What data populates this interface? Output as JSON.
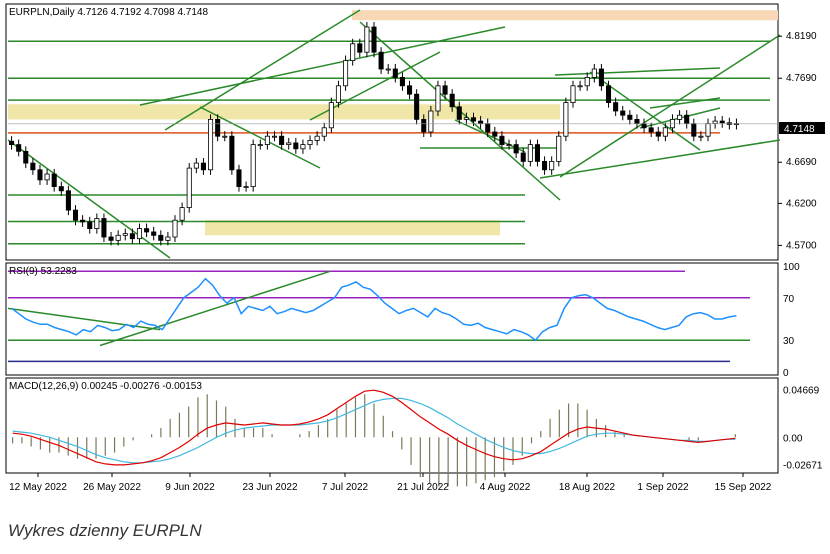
{
  "title": "EURPLN,Daily  4.7126 4.7192 4.7098 4.7148",
  "last_price_label": "4.7148",
  "caption": "Wykres dzienny EURPLN",
  "colors": {
    "bull": "#ffffff",
    "bear": "#000000",
    "rsi": "#1e90ff",
    "macd_line": "#e00000",
    "signal_line": "#40b8e0",
    "hist": "#7a7a5a",
    "trend": "#2a8a2a",
    "support": "#e0501a",
    "zone": "#f0e6a8",
    "zone_top": "#f7d7b5",
    "rsi_levels": "#9a20c0"
  },
  "chart_data": [
    {
      "type": "candlestick",
      "title": "EURPLN,Daily  4.7126 4.7192 4.7098 4.7148",
      "x_ticks": [
        "12 May 2022",
        "26 May 2022",
        "9 Jun 2022",
        "23 Jun 2022",
        "7 Jul 2022",
        "21 Jul 2022",
        "4 Aug 2022",
        "18 Aug 2022",
        "1 Sep 2022",
        "15 Sep 2022"
      ],
      "y_ticks": [
        4.819,
        4.769,
        4.7148,
        4.669,
        4.62,
        4.57
      ],
      "ylim": [
        4.555,
        4.855
      ],
      "ohlc_close_series": [
        4.69,
        4.682,
        4.668,
        4.66,
        4.648,
        4.655,
        4.64,
        4.635,
        4.612,
        4.6,
        4.598,
        4.59,
        4.602,
        4.58,
        4.576,
        4.582,
        4.584,
        4.578,
        4.59,
        4.586,
        4.582,
        4.576,
        4.58,
        4.6,
        4.615,
        4.662,
        4.668,
        4.66,
        4.72,
        4.7,
        4.7,
        4.66,
        4.64,
        4.64,
        4.69,
        4.69,
        4.7,
        4.7,
        4.69,
        4.692,
        4.685,
        4.69,
        4.695,
        4.7,
        4.71,
        4.74,
        4.76,
        4.79,
        4.81,
        4.8,
        4.83,
        4.8,
        4.78,
        4.78,
        4.77,
        4.76,
        4.75,
        4.72,
        4.705,
        4.73,
        4.76,
        4.75,
        4.735,
        4.72,
        4.722,
        4.718,
        4.715,
        4.705,
        4.7,
        4.69,
        4.69,
        4.68,
        4.67,
        4.69,
        4.67,
        4.66,
        4.67,
        4.7,
        4.74,
        4.76,
        4.76,
        4.77,
        4.78,
        4.76,
        4.74,
        4.73,
        4.725,
        4.72,
        4.715,
        4.71,
        4.705,
        4.7,
        4.71,
        4.72,
        4.725,
        4.715,
        4.7,
        4.7,
        4.715,
        4.718,
        4.716,
        4.714,
        4.715
      ],
      "support_line": 4.704,
      "zones": [
        [
          4.582,
          4.6
        ],
        [
          4.72,
          4.738
        ],
        [
          4.838,
          4.85
        ]
      ]
    },
    {
      "type": "line",
      "title": "RSI(9) 53.2283",
      "y_ticks": [
        100,
        70,
        30,
        0
      ],
      "ylim": [
        0,
        100
      ],
      "levels": [
        95,
        70,
        30,
        10
      ],
      "series": [
        {
          "name": "RSI(9)",
          "values": [
            60,
            55,
            50,
            47,
            45,
            45,
            42,
            40,
            38,
            35,
            40,
            38,
            44,
            42,
            39,
            40,
            45,
            42,
            48,
            45,
            44,
            40,
            50,
            60,
            70,
            75,
            80,
            88,
            82,
            72,
            65,
            70,
            55,
            62,
            60,
            58,
            62,
            55,
            57,
            60,
            58,
            56,
            58,
            62,
            66,
            70,
            80,
            82,
            85,
            80,
            78,
            72,
            65,
            60,
            55,
            58,
            60,
            56,
            52,
            60,
            56,
            54,
            50,
            45,
            44,
            46,
            42,
            40,
            38,
            36,
            40,
            38,
            35,
            30,
            38,
            42,
            44,
            60,
            70,
            72,
            73,
            70,
            65,
            60,
            58,
            55,
            52,
            50,
            48,
            45,
            42,
            40,
            42,
            44,
            52,
            55,
            56,
            54,
            50,
            50,
            52,
            53
          ]
        }
      ]
    },
    {
      "type": "bar",
      "title": "MACD(12,26,9) 0.00245 -0.00276 -0.00153",
      "y_ticks": [
        0.04669,
        0.0,
        -0.02671
      ],
      "ylim": [
        -0.032,
        0.055
      ],
      "series": [
        {
          "name": "MACD",
          "values": [
            0.004,
            0.003,
            0.001,
            -0.002,
            -0.005,
            -0.008,
            -0.012,
            -0.016,
            -0.02,
            -0.024,
            -0.026,
            -0.027,
            -0.027,
            -0.026,
            -0.025,
            -0.023,
            -0.02,
            -0.015,
            -0.01,
            -0.004,
            0.003,
            0.009,
            0.012,
            0.014,
            0.013,
            0.012,
            0.013,
            0.014,
            0.013,
            0.012,
            0.012,
            0.013,
            0.015,
            0.018,
            0.022,
            0.028,
            0.034,
            0.04,
            0.045,
            0.046,
            0.044,
            0.04,
            0.034,
            0.027,
            0.02,
            0.014,
            0.008,
            0.003,
            -0.003,
            -0.008,
            -0.012,
            -0.016,
            -0.019,
            -0.021,
            -0.022,
            -0.021,
            -0.018,
            -0.014,
            -0.008,
            -0.002,
            0.004,
            0.008,
            0.01,
            0.009,
            0.008,
            0.006,
            0.004,
            0.002,
            0.001,
            0.0,
            -0.001,
            -0.002,
            -0.003,
            -0.004,
            -0.005,
            -0.004,
            -0.003,
            -0.002,
            -0.001
          ]
        },
        {
          "name": "Signal",
          "values": [
            0.006,
            0.005,
            0.004,
            0.002,
            0.0,
            -0.003,
            -0.006,
            -0.009,
            -0.013,
            -0.017,
            -0.02,
            -0.022,
            -0.024,
            -0.025,
            -0.025,
            -0.024,
            -0.023,
            -0.021,
            -0.018,
            -0.014,
            -0.01,
            -0.005,
            0.0,
            0.004,
            0.007,
            0.009,
            0.01,
            0.011,
            0.012,
            0.012,
            0.012,
            0.012,
            0.013,
            0.014,
            0.016,
            0.019,
            0.023,
            0.027,
            0.031,
            0.035,
            0.037,
            0.038,
            0.038,
            0.036,
            0.033,
            0.029,
            0.024,
            0.019,
            0.013,
            0.008,
            0.003,
            -0.002,
            -0.006,
            -0.01,
            -0.013,
            -0.015,
            -0.016,
            -0.016,
            -0.014,
            -0.011,
            -0.007,
            -0.003,
            0.001,
            0.003,
            0.004,
            0.004,
            0.003,
            0.002,
            0.001,
            0.0,
            -0.001,
            -0.002,
            -0.003,
            -0.003,
            -0.004,
            -0.004,
            -0.003,
            -0.002,
            -0.002
          ]
        }
      ]
    }
  ]
}
